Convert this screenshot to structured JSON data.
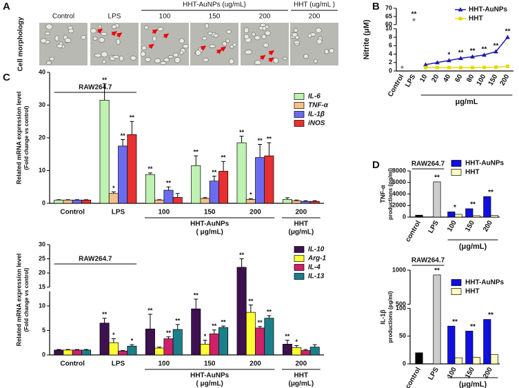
{
  "panel_a": {
    "letter": "A",
    "group_label": "HHT-AuNPs (ug/mL)",
    "group_label_2": "HHT (ug/mL )",
    "columns": [
      "Control",
      "LPS",
      "100",
      "150",
      "200",
      "200"
    ],
    "row_label": "Cell morphology"
  },
  "chart_data": [
    {
      "type": "line",
      "panel": "B",
      "ylabel": "Nitrite (μM)",
      "xlabel": "μg/mL",
      "categories": [
        "Control",
        "LPS",
        "10",
        "20",
        "40",
        "60",
        "80",
        "100",
        "150",
        "200"
      ],
      "control_values": [
        0.9,
        63,
        null,
        null,
        null,
        null,
        null,
        null,
        null,
        null
      ],
      "control_color": "#888888",
      "series": [
        {
          "name": "HHT-AuNPs",
          "color": "#1a1aa6",
          "marker": "triangle",
          "values": [
            null,
            null,
            1.5,
            2.0,
            2.5,
            3.0,
            3.4,
            3.8,
            4.6,
            8.0
          ]
        },
        {
          "name": "HHT",
          "color": "#e6d800",
          "marker": "square",
          "values": [
            null,
            null,
            0.8,
            0.8,
            0.8,
            0.8,
            0.8,
            0.85,
            0.9,
            1.1
          ]
        }
      ],
      "stars": [
        null,
        "**",
        null,
        null,
        "*",
        "**",
        "**",
        "**",
        "**",
        "**"
      ],
      "ylim": [
        0,
        70
      ],
      "ybreak": [
        10,
        60
      ],
      "yticks": [
        0,
        2,
        4,
        6,
        8,
        10,
        60,
        65,
        70
      ],
      "legend": "upper right"
    },
    {
      "type": "bar",
      "panel": "C",
      "title": "RAW264.7",
      "ylabel": "Related mRNA expression level",
      "ylabel_2": "(Fold change vs control)",
      "categories": [
        "Control",
        "LPS",
        "100",
        "150",
        "200",
        "200"
      ],
      "group_labels": [
        "HHT-AuNPs",
        "HHT"
      ],
      "group_units": [
        "( μg/mL)",
        "(μg/mL)"
      ],
      "series": [
        {
          "name": "IL-6",
          "color": "#bdf2b0",
          "values": [
            1,
            31.5,
            8.8,
            11.5,
            18.5,
            1.2
          ],
          "errors": [
            0.1,
            5,
            0.5,
            3,
            2,
            0.5
          ],
          "stars": [
            null,
            "**",
            "**",
            "**",
            "**",
            null
          ]
        },
        {
          "name": "TNF-α",
          "color": "#f5c08a",
          "values": [
            1,
            3,
            1,
            1.5,
            1.2,
            0.8
          ],
          "errors": [
            0.1,
            0.5,
            0.1,
            0.2,
            0.2,
            0.2
          ],
          "stars": [
            null,
            "*",
            null,
            null,
            "*",
            null
          ]
        },
        {
          "name": "IL-1β",
          "color": "#6b6bef",
          "values": [
            1,
            17.5,
            4,
            6.8,
            14,
            0.6
          ],
          "errors": [
            0.1,
            2,
            1,
            1.5,
            4,
            0.2
          ],
          "stars": [
            null,
            "**",
            "**",
            "**",
            "**",
            null
          ]
        },
        {
          "name": "iNOS",
          "color": "#e83030",
          "values": [
            1,
            21,
            1.8,
            9.8,
            14.5,
            0.6
          ],
          "errors": [
            0.1,
            4,
            1.2,
            3,
            4,
            0.2
          ],
          "stars": [
            null,
            "**",
            null,
            "**",
            "**",
            null
          ]
        }
      ],
      "ylim": [
        0,
        40
      ],
      "yticks": [
        0,
        10,
        20,
        30,
        40
      ],
      "legend": "upper right"
    },
    {
      "type": "bar",
      "title": "RAW264.7",
      "ylabel": "Related mRNA expression level",
      "ylabel_2": "(Fold change vs control)",
      "categories": [
        "Control",
        "LPS",
        "100",
        "150",
        "200",
        "200"
      ],
      "group_labels": [
        "HHT-AuNPs",
        "HHT"
      ],
      "group_units": [
        "( μg/mL)",
        "(μg/mL)"
      ],
      "series": [
        {
          "name": "IL-10",
          "color": "#3d1050",
          "values": [
            1,
            6.5,
            5.3,
            9.4,
            22,
            2.2
          ],
          "errors": [
            0.1,
            1,
            3,
            2,
            3,
            0.8
          ],
          "stars": [
            null,
            "**",
            "**",
            "**",
            "**",
            "**"
          ]
        },
        {
          "name": "Arg-1",
          "color": "#ffff33",
          "values": [
            1,
            2.5,
            1.4,
            2.2,
            8.7,
            1.5
          ],
          "errors": [
            0.1,
            0.8,
            0.2,
            0.8,
            1.5,
            0.4
          ],
          "stars": [
            null,
            "*",
            null,
            "*",
            "**",
            "*"
          ]
        },
        {
          "name": "IL-4",
          "color": "#d0206a",
          "values": [
            1,
            0.8,
            3.3,
            4.3,
            5.5,
            0.9
          ],
          "errors": [
            0.1,
            0.1,
            0.4,
            0.8,
            0.3,
            0.2
          ],
          "stars": [
            null,
            null,
            "**",
            "**",
            "**",
            null
          ]
        },
        {
          "name": "IL-13",
          "color": "#1b7f8a",
          "values": [
            1,
            1.8,
            5.2,
            5.6,
            7.5,
            1.6
          ],
          "errors": [
            0.1,
            0.3,
            1,
            0.3,
            0.5,
            0.5
          ],
          "stars": [
            null,
            "*",
            "**",
            "**",
            "**",
            null
          ]
        }
      ],
      "ylim": [
        0,
        30
      ],
      "ybreak": [
        13,
        15
      ],
      "yticks": [
        0,
        5,
        10,
        15,
        20,
        25,
        30
      ],
      "legend": "upper right"
    },
    {
      "type": "bar",
      "panel": "D",
      "title": "RAW264.7",
      "ylabel": "TNF-α",
      "ylabel_2": "productions (pg/ml)",
      "xlabel": "(μg/mL)",
      "categories": [
        "control",
        "LPS",
        "100",
        "150",
        "200"
      ],
      "values": [
        330,
        6100,
        null,
        null,
        null
      ],
      "colors": [
        "#000000",
        "#cccccc",
        null,
        null,
        null
      ],
      "series": [
        {
          "name": "HHT-AuNPs",
          "color": "#1010e0",
          "values": [
            null,
            null,
            900,
            1450,
            3550
          ]
        },
        {
          "name": "HHT",
          "color": "#ffffc0",
          "values": [
            null,
            null,
            480,
            250,
            300
          ]
        }
      ],
      "stars": [
        null,
        "**",
        "*",
        "**",
        "**"
      ],
      "ylim": [
        0,
        8000
      ],
      "yticks": [
        0,
        2000,
        4000,
        6000,
        8000
      ],
      "legend": "upper right"
    },
    {
      "type": "bar",
      "title": "RAW264.7",
      "ylabel": "IL-1β",
      "ylabel_2": "productions (pg/ml)",
      "xlabel": "(μg/mL)",
      "categories": [
        "control",
        "LPS",
        "100",
        "150",
        "200"
      ],
      "values": [
        20,
        930,
        null,
        null,
        null
      ],
      "colors": [
        "#000000",
        "#cccccc",
        null,
        null,
        null
      ],
      "series": [
        {
          "name": "HHT-AuNPs",
          "color": "#1010e0",
          "values": [
            null,
            null,
            68,
            59,
            80
          ]
        },
        {
          "name": "HHT",
          "color": "#ffffc0",
          "values": [
            null,
            null,
            11,
            12,
            17
          ]
        }
      ],
      "stars": [
        null,
        "**",
        "**",
        "**",
        "**"
      ],
      "ylim": [
        0,
        1000
      ],
      "ybreak": [
        100,
        500
      ],
      "yticks": [
        0,
        50,
        100,
        500,
        1000
      ],
      "legend": "upper right"
    }
  ]
}
